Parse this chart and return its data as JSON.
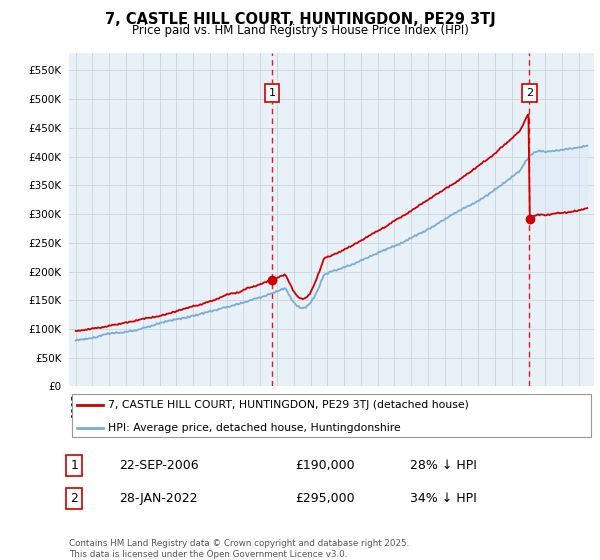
{
  "title": "7, CASTLE HILL COURT, HUNTINGDON, PE29 3TJ",
  "subtitle": "Price paid vs. HM Land Registry's House Price Index (HPI)",
  "ylim": [
    0,
    580000
  ],
  "yticks": [
    0,
    50000,
    100000,
    150000,
    200000,
    250000,
    300000,
    350000,
    400000,
    450000,
    500000,
    550000
  ],
  "sale1_date": "22-SEP-2006",
  "sale1_price": 190000,
  "sale1_pct": "28%",
  "sale2_date": "28-JAN-2022",
  "sale2_price": 295000,
  "sale2_pct": "34%",
  "property_label": "7, CASTLE HILL COURT, HUNTINGDON, PE29 3TJ (detached house)",
  "hpi_label": "HPI: Average price, detached house, Huntingdonshire",
  "footer": "Contains HM Land Registry data © Crown copyright and database right 2025.\nThis data is licensed under the Open Government Licence v3.0.",
  "property_color": "#cc0000",
  "hpi_color": "#7aadd4",
  "fill_color": "#dceaf5",
  "background_color": "#f0f4f8",
  "grid_color": "#c8d4e0",
  "chart_bg": "#e8f0f8"
}
